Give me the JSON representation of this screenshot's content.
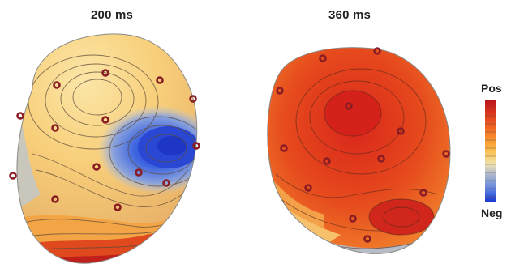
{
  "panels": [
    {
      "title": "200 ms"
    },
    {
      "title": "360 ms"
    }
  ],
  "colorbar": {
    "top_label": "Pos",
    "bottom_label": "Neg",
    "colors": [
      "#b8141c",
      "#d8321c",
      "#ec5a20",
      "#f7872c",
      "#fab040",
      "#f9d070",
      "#ede1b3",
      "#b7bcc6",
      "#8aa1d6",
      "#5a7ee0",
      "#2c52dc",
      "#1a35c8"
    ]
  },
  "colors": {
    "electrode": "#8a1c24",
    "contour": "#5c4a3a"
  }
}
